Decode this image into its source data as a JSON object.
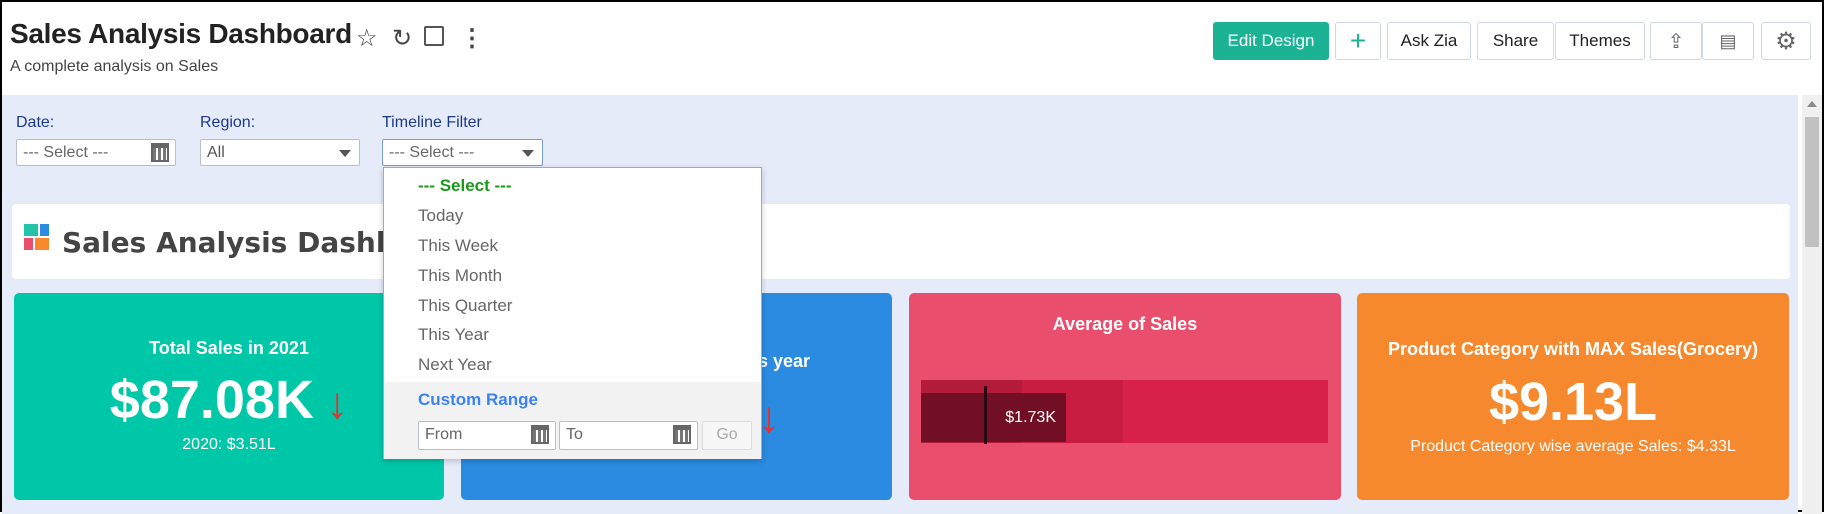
{
  "header": {
    "title": "Sales Analysis Dashboard",
    "subtitle": "A complete analysis on Sales",
    "buttons": {
      "edit_design": "Edit Design",
      "add": "+",
      "ask_zia": "Ask Zia",
      "share": "Share",
      "themes": "Themes"
    }
  },
  "filters": {
    "date": {
      "label": "Date:",
      "value": "--- Select ---"
    },
    "region": {
      "label": "Region:",
      "value": "All"
    },
    "timeline": {
      "label": "Timeline Filter",
      "value": "--- Select ---"
    }
  },
  "dropdown": {
    "items": [
      "--- Select ---",
      "Today",
      "This Week",
      "This Month",
      "This Quarter",
      "This Year",
      "Next Year"
    ],
    "custom_range": "Custom Range",
    "from_placeholder": "From",
    "to_placeholder": "To",
    "go": "Go"
  },
  "panel": {
    "title": "Sales Analysis Dashboa"
  },
  "cards": [
    {
      "title": "Total Sales in 2021",
      "value": "$87.08K",
      "trend": "down",
      "subtitle": "2020: $3.51L",
      "color": "#00c7a8"
    },
    {
      "title": "s year",
      "trend": "down",
      "color": "#2b8be0"
    },
    {
      "title": "Average of Sales",
      "value_label": "$1.73K",
      "color": "#e94f6c"
    },
    {
      "title": "Product Category with MAX Sales(Grocery)",
      "value": "$9.13L",
      "subtitle": "Product Category wise average Sales: $4.33L",
      "color": "#f6892d"
    }
  ],
  "colors": {
    "accent": "#1bb394",
    "trend_down": "#e8312f",
    "dropdown_selected": "#1a9a1a",
    "custom_range": "#3b82f6"
  }
}
